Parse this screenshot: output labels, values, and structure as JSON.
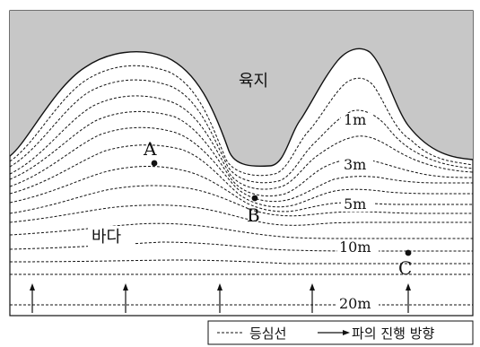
{
  "labels": {
    "land": "육지",
    "sea": "바다",
    "point_a": "A",
    "point_b": "B",
    "point_c": "C"
  },
  "depth_labels": {
    "d1": "1m",
    "d3": "3m",
    "d5": "5m",
    "d10": "10m",
    "d20": "20m"
  },
  "legend": {
    "contour_label": "등심선",
    "wave_label": "파의 진행 방향"
  },
  "colors": {
    "land_fill": "#c7c7c7",
    "line": "#111111"
  },
  "icons": {
    "wave_arrow": "arrow-up-icon",
    "legend_arrow": "arrow-right-icon"
  }
}
